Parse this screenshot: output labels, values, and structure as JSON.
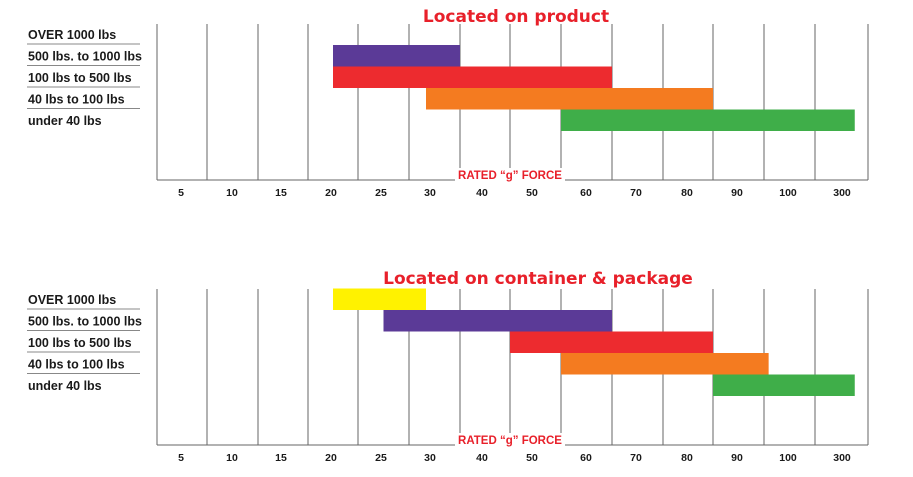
{
  "colors": {
    "purple": "#5b3a97",
    "red": "#ed2b2f",
    "orange": "#f47b20",
    "green": "#3fae49",
    "yellow": "#fff200",
    "title": "#e8202a",
    "grid": "#666666"
  },
  "chart_data": [
    {
      "type": "bar",
      "orientation": "horizontal-range",
      "title": "Located on product",
      "xlabel": "RATED “g” FORCE",
      "ticks": [
        "5",
        "10",
        "15",
        "20",
        "25",
        "30",
        "40",
        "50",
        "60",
        "70",
        "80",
        "90",
        "100",
        "300"
      ],
      "categories": [
        "OVER 1000 lbs",
        "500 lbs. to 1000 lbs",
        "100 lbs to 500 lbs",
        "40 lbs to 100 lbs",
        "under 40 lbs"
      ],
      "grid": true,
      "bars": [
        {
          "category": "OVER 1000 lbs",
          "from": null,
          "to": null,
          "color": null
        },
        {
          "category": "500 lbs. to 1000 lbs",
          "from": 20,
          "to": 35,
          "color": "#5b3a97"
        },
        {
          "category": "100 lbs to 500 lbs",
          "from": 20,
          "to": 65,
          "color": "#ed2b2f"
        },
        {
          "category": "40 lbs to 100 lbs",
          "from": 30,
          "to": 85,
          "color": "#f47b20"
        },
        {
          "category": "under 40 lbs",
          "from": 55,
          "to": 300,
          "color": "#3fae49"
        }
      ]
    },
    {
      "type": "bar",
      "orientation": "horizontal-range",
      "title": "Located on container & package",
      "xlabel": "RATED “g” FORCE",
      "ticks": [
        "5",
        "10",
        "15",
        "20",
        "25",
        "30",
        "40",
        "50",
        "60",
        "70",
        "80",
        "90",
        "100",
        "300"
      ],
      "categories": [
        "OVER 1000 lbs",
        "500 lbs. to 1000 lbs",
        "100 lbs to 500 lbs",
        "40 lbs to 100 lbs",
        "under 40 lbs"
      ],
      "grid": true,
      "bars": [
        {
          "category": "OVER 1000 lbs",
          "from": 20,
          "to": 30,
          "color": "#fff200"
        },
        {
          "category": "500 lbs. to 1000 lbs",
          "from": 25,
          "to": 65,
          "color": "#5b3a97"
        },
        {
          "category": "100 lbs to 500 lbs",
          "from": 45,
          "to": 85,
          "color": "#ed2b2f"
        },
        {
          "category": "40 lbs to 100 lbs",
          "from": 55,
          "to": 100,
          "color": "#f47b20"
        },
        {
          "category": "under 40 lbs",
          "from": 85,
          "to": 300,
          "color": "#3fae49"
        }
      ]
    }
  ]
}
